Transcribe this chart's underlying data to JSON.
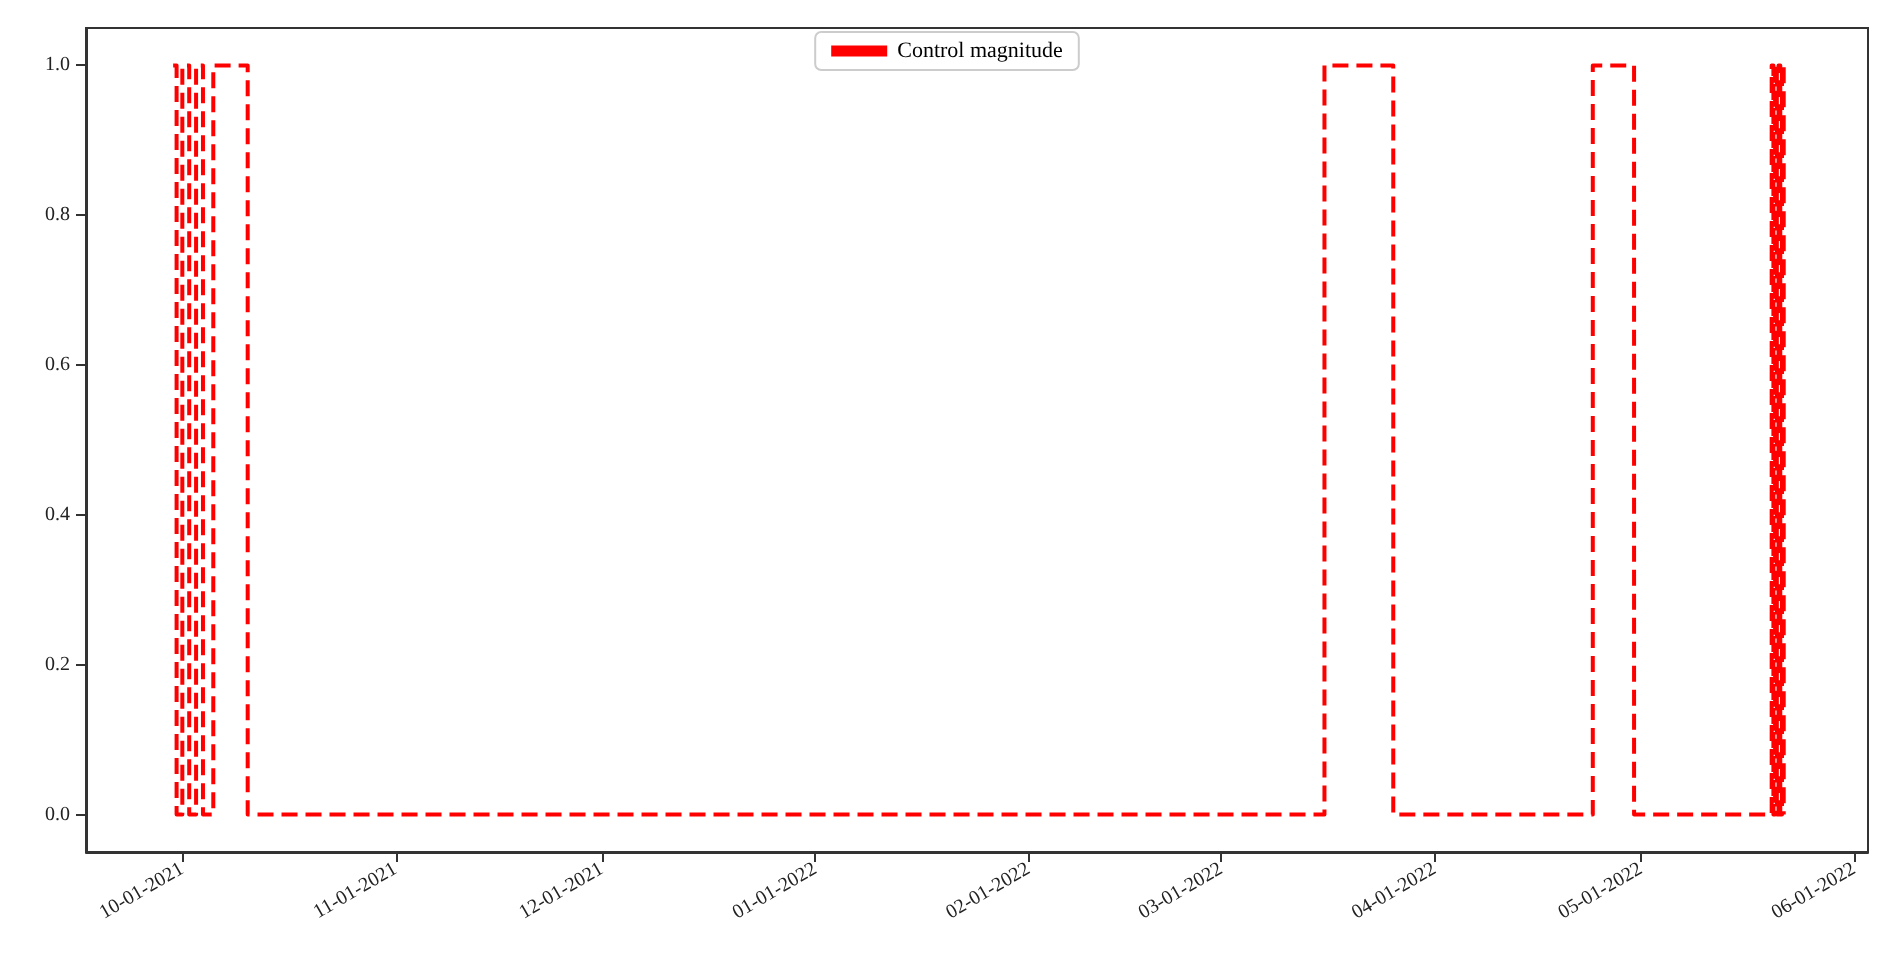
{
  "chart_data": {
    "type": "step",
    "legend": "top",
    "grid": false,
    "line_style": "dashed",
    "marker": "none",
    "xlim": [
      "2021-09-17",
      "2022-06-03"
    ],
    "xticks": [
      {
        "value": "2021-10-01",
        "label": "10-01-2021"
      },
      {
        "value": "2021-11-01",
        "label": "11-01-2021"
      },
      {
        "value": "2021-12-01",
        "label": "12-01-2021"
      },
      {
        "value": "2022-01-01",
        "label": "01-01-2022"
      },
      {
        "value": "2022-02-01",
        "label": "02-01-2022"
      },
      {
        "value": "2022-03-01",
        "label": "03-01-2022"
      },
      {
        "value": "2022-04-01",
        "label": "04-01-2022"
      },
      {
        "value": "2022-05-01",
        "label": "05-01-2022"
      },
      {
        "value": "2022-06-01",
        "label": "06-01-2022"
      }
    ],
    "ylim": [
      -0.05,
      1.05
    ],
    "yticks": [
      {
        "value": 0,
        "label": "0.0"
      },
      {
        "value": 0.2,
        "label": "0.2"
      },
      {
        "value": 0.4,
        "label": "0.4"
      },
      {
        "value": 0.6,
        "label": "0.6"
      },
      {
        "value": 0.8,
        "label": "0.8"
      },
      {
        "value": 1,
        "label": "1.0"
      }
    ],
    "series": [
      {
        "name": "Control magnitude",
        "color": "#ff0000",
        "x": [
          "2021-09-29T16:00",
          "2021-09-30T04:00",
          "2021-10-01",
          "2021-10-02",
          "2021-10-03",
          "2021-10-04",
          "2021-10-05T12:00",
          "2021-10-10T12:00",
          "2022-03-16",
          "2022-03-26",
          "2022-04-24",
          "2022-04-30",
          "2022-05-20T00:00",
          "2022-05-20T06:00",
          "2022-05-20T12:00",
          "2022-05-20T18:00",
          "2022-05-21T00:00",
          "2022-05-21T06:00",
          "2022-05-21T12:00",
          "2022-05-21T18:00"
        ],
        "values": [
          1,
          0,
          1,
          0,
          1,
          0,
          1,
          0,
          1,
          0,
          1,
          0,
          1,
          0,
          1,
          0,
          1,
          0,
          1,
          0
        ]
      }
    ]
  }
}
